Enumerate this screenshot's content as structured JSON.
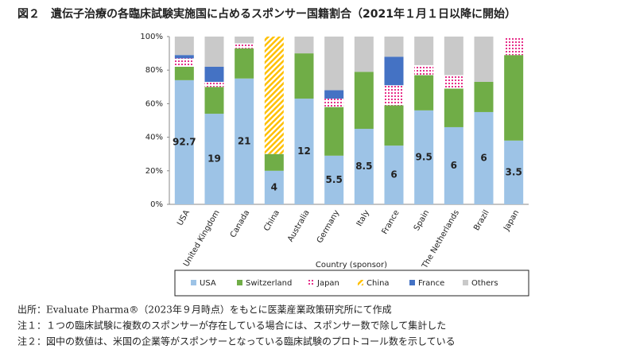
{
  "chart_data": {
    "type": "stacked_bar",
    "title": "図２　遺伝子治療の各臨床試験実施国に占めるスポンサー国籍割合（2021年１月１日以降に開始）",
    "categories": [
      "USA",
      "United Kingdom",
      "Canada",
      "China",
      "Australia",
      "Germany",
      "Italy",
      "France",
      "Spain",
      "The Netherlands",
      "Brazil",
      "Japan"
    ],
    "series": [
      {
        "name": "USA",
        "color": "#9dc3e6",
        "values": [
          74,
          54,
          75,
          20,
          63,
          29,
          45,
          35,
          56,
          46,
          55,
          38
        ]
      },
      {
        "name": "Switzerland",
        "color": "#70ad47",
        "values": [
          8,
          16,
          18,
          10,
          27,
          29,
          34,
          24,
          21,
          23,
          18,
          51
        ]
      },
      {
        "name": "Japan",
        "color": "#e6308a",
        "pattern": "dots",
        "values": [
          5,
          3,
          3,
          0,
          0,
          5,
          0,
          12,
          6,
          8,
          0,
          11
        ]
      },
      {
        "name": "China",
        "color": "#ffc000",
        "pattern": "stripes",
        "values": [
          0,
          0,
          0,
          70,
          0,
          0,
          0,
          0,
          0,
          0,
          0,
          0
        ]
      },
      {
        "name": "France",
        "color": "#4472c4",
        "values": [
          2,
          9,
          0,
          0,
          0,
          5,
          0,
          17,
          0,
          0,
          0,
          0
        ]
      },
      {
        "name": "Others",
        "color": "#c9c9c9",
        "values": [
          11,
          18,
          4,
          0,
          10,
          32,
          21,
          12,
          17,
          23,
          27,
          0
        ]
      }
    ],
    "usa_trial_counts": [
      92.7,
      19,
      21,
      4,
      12,
      5.5,
      8.5,
      6,
      9.5,
      6,
      6,
      3.5
    ],
    "ylim": [
      0,
      100
    ],
    "yticks": [
      {
        "value": 0,
        "label": "0%"
      },
      {
        "value": 20,
        "label": "20%"
      },
      {
        "value": 40,
        "label": "40%"
      },
      {
        "value": 60,
        "label": "60%"
      },
      {
        "value": 80,
        "label": "80%"
      },
      {
        "value": 100,
        "label": "100%"
      }
    ],
    "legend_title": "Country (sponsor)",
    "legend_position": "bottom",
    "notes": [
      "出所：Evaluate Pharma®（2023年９月時点）をもとに医薬産業政策研究所にて作成",
      "注１：１つの臨床試験に複数のスポンサーが存在している場合には、スポンサー数で除して集計した",
      "注２：図中の数値は、米国の企業等がスポンサーとなっている臨床試験のプロトコール数を示している"
    ]
  }
}
